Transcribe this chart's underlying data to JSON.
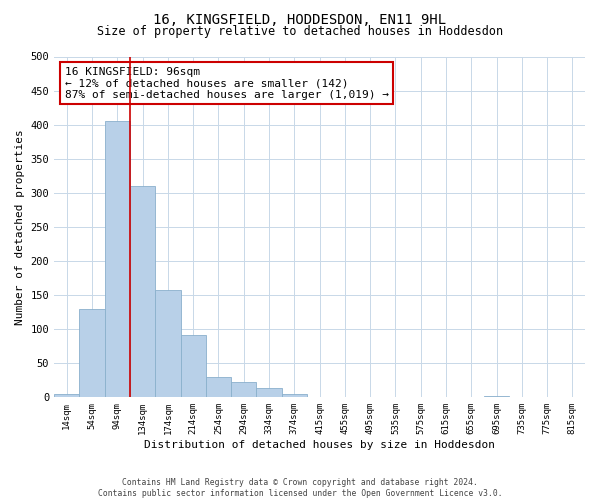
{
  "title1": "16, KINGSFIELD, HODDESDON, EN11 9HL",
  "title2": "Size of property relative to detached houses in Hoddesdon",
  "xlabel": "Distribution of detached houses by size in Hoddesdon",
  "ylabel": "Number of detached properties",
  "footer1": "Contains HM Land Registry data © Crown copyright and database right 2024.",
  "footer2": "Contains public sector information licensed under the Open Government Licence v3.0.",
  "annotation_title": "16 KINGSFIELD: 96sqm",
  "annotation_line2": "← 12% of detached houses are smaller (142)",
  "annotation_line3": "87% of semi-detached houses are larger (1,019) →",
  "bar_values": [
    5,
    130,
    405,
    310,
    157,
    92,
    30,
    22,
    14,
    5,
    0,
    0,
    0,
    0,
    0,
    0,
    0,
    2,
    0,
    0,
    0
  ],
  "bar_labels": [
    "14sqm",
    "54sqm",
    "94sqm",
    "134sqm",
    "174sqm",
    "214sqm",
    "254sqm",
    "294sqm",
    "334sqm",
    "374sqm",
    "415sqm",
    "455sqm",
    "495sqm",
    "535sqm",
    "575sqm",
    "615sqm",
    "655sqm",
    "695sqm",
    "735sqm",
    "775sqm",
    "815sqm"
  ],
  "bar_color": "#b8d0e8",
  "bar_edge_color": "#8ab0cc",
  "marker_color": "#cc0000",
  "ylim": [
    0,
    500
  ],
  "yticks": [
    0,
    50,
    100,
    150,
    200,
    250,
    300,
    350,
    400,
    450,
    500
  ],
  "background_color": "#ffffff",
  "grid_color": "#c8d8e8",
  "annotation_box_color": "#ffffff",
  "annotation_box_edge": "#cc0000"
}
